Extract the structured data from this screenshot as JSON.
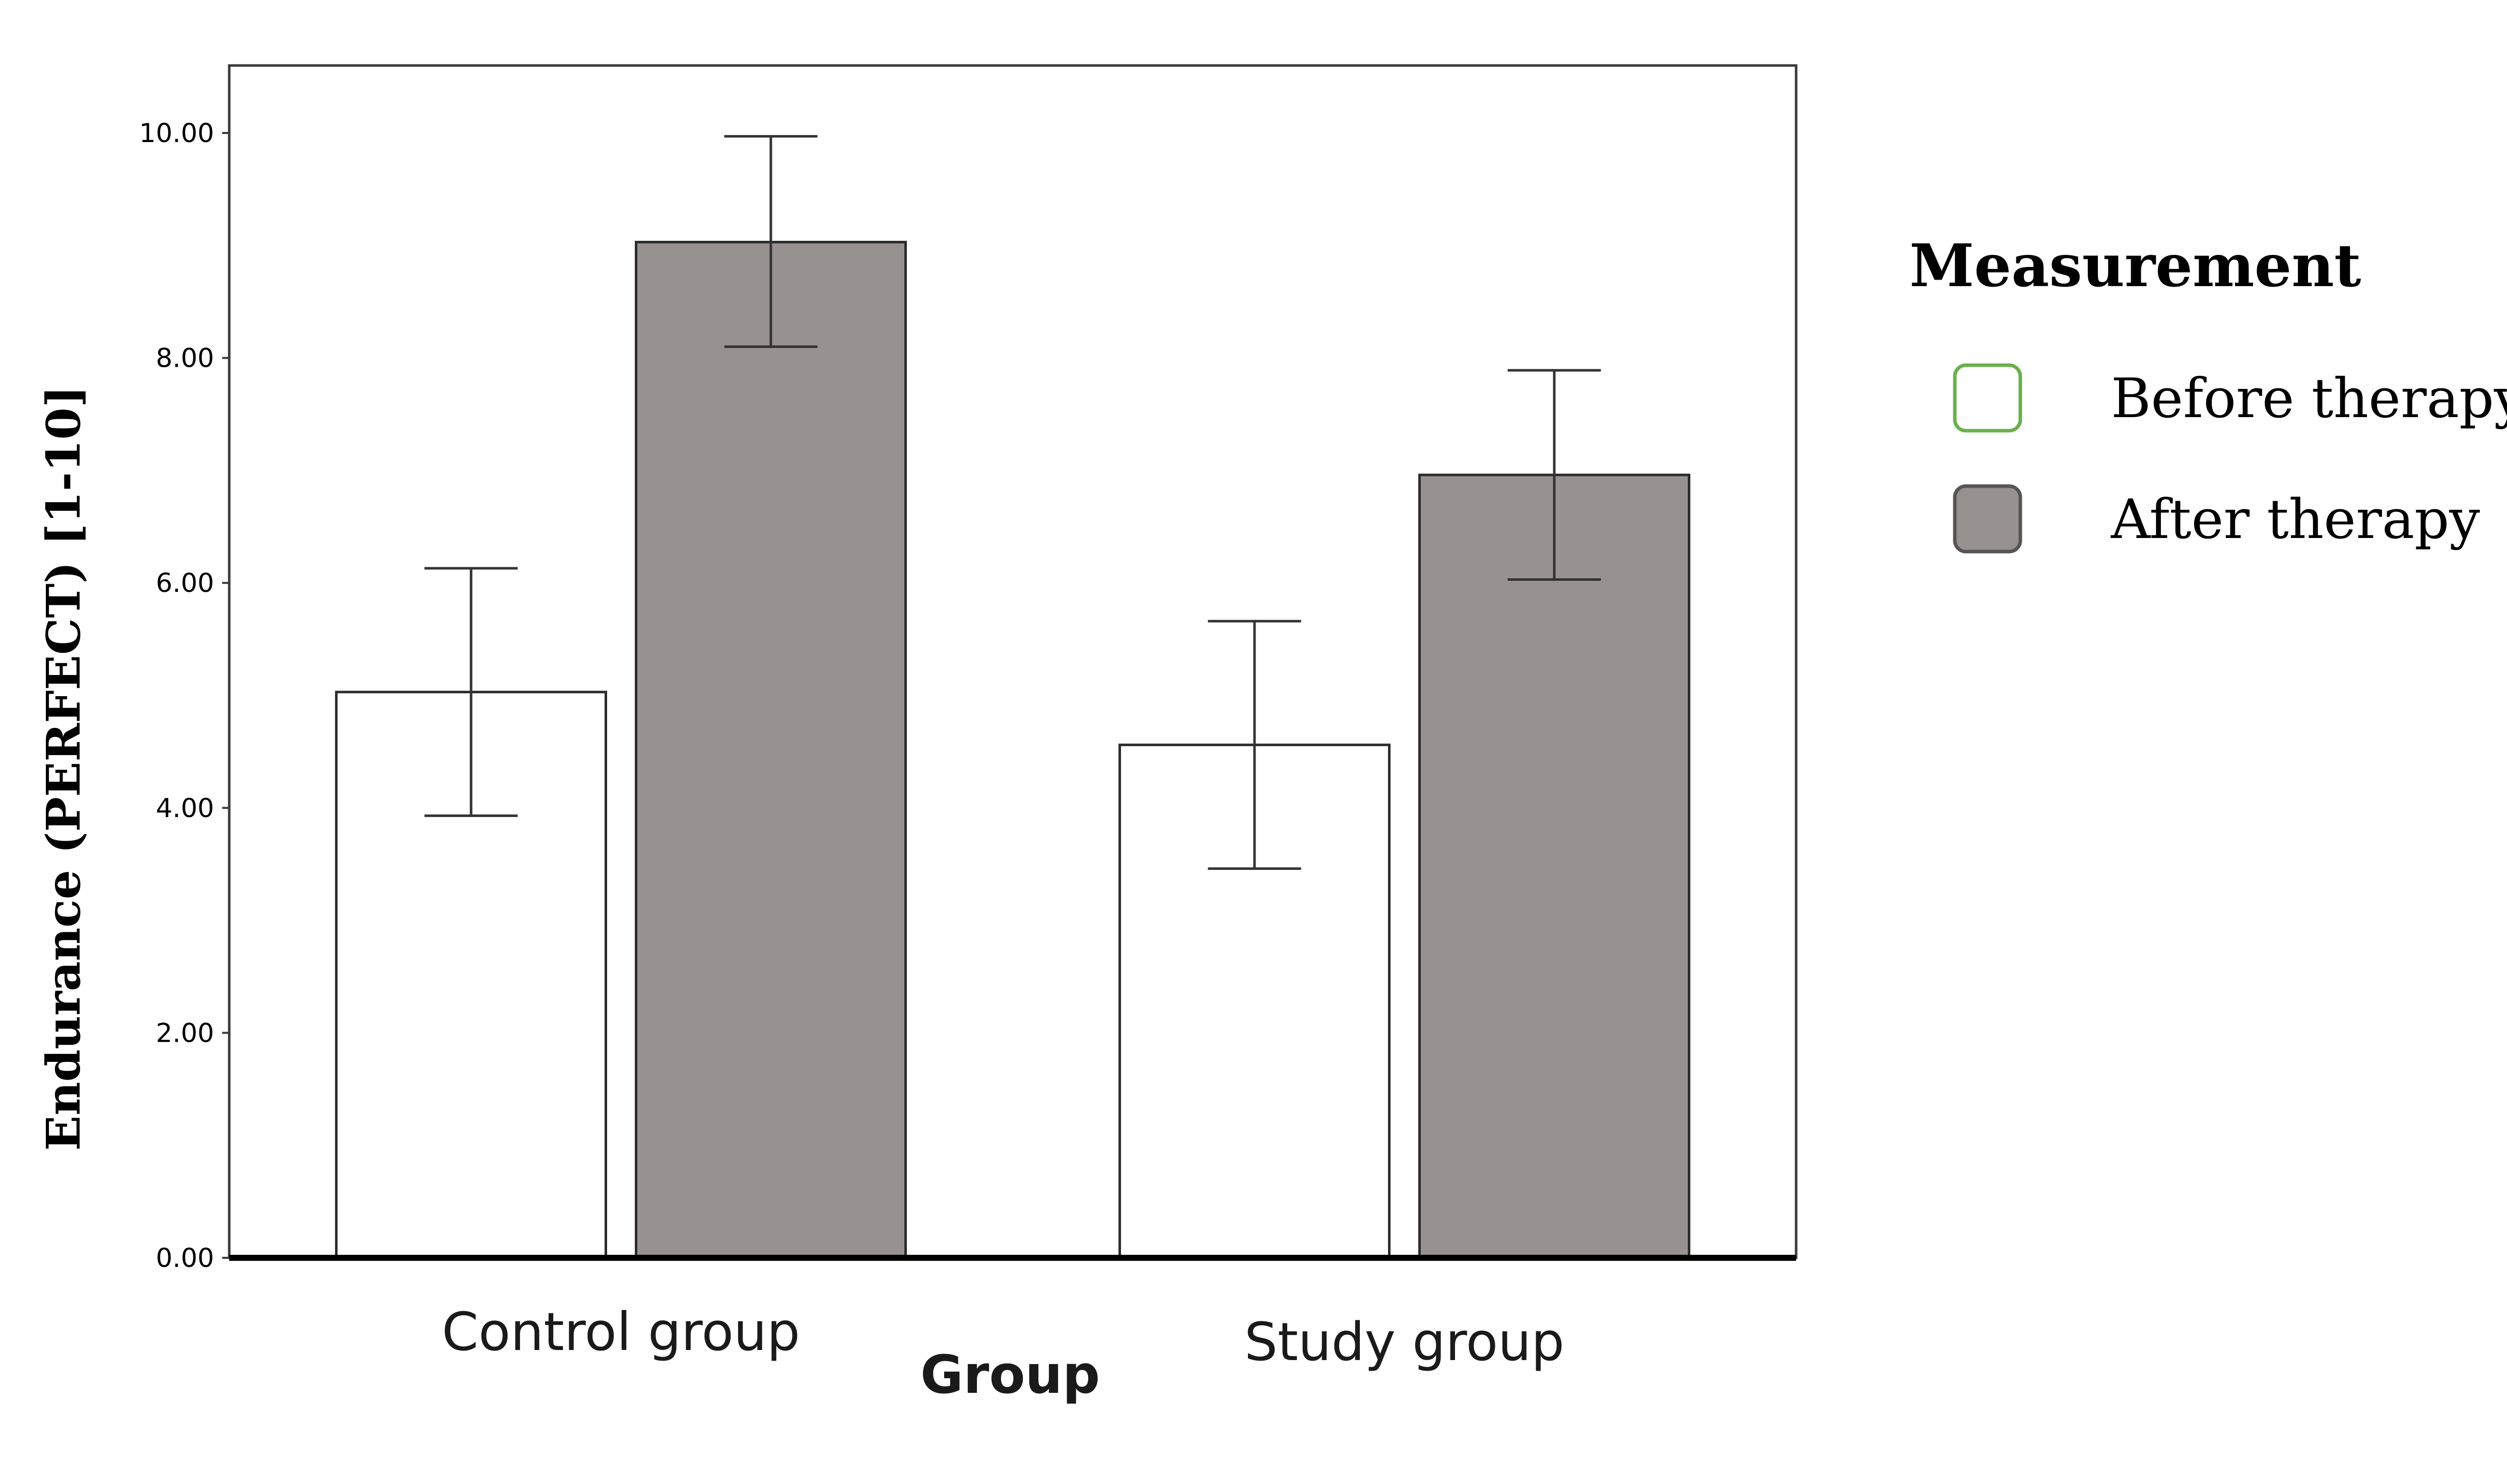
{
  "chart_data": {
    "type": "bar",
    "xlabel": "Group",
    "ylabel": "Endurance (PERFECT) [1-10]",
    "ylim": [
      0,
      10.6
    ],
    "yticks": [
      0,
      2,
      4,
      6,
      8,
      10
    ],
    "ytick_labels": [
      "0.00",
      "2.00",
      "4.00",
      "6.00",
      "8.00",
      "10.00"
    ],
    "categories": [
      "Control group",
      "Study group"
    ],
    "legend_title": "Measurement",
    "legend_position": "right",
    "series": [
      {
        "name": "Before therapy",
        "fill": "#ffffff",
        "stroke": "#2b2b2b",
        "legend_stroke": "#6ab04c",
        "values": [
          5.03,
          4.56
        ],
        "error_low": [
          3.93,
          3.46
        ],
        "error_high": [
          6.13,
          5.66
        ]
      },
      {
        "name": "After therapy",
        "fill": "#979190",
        "stroke": "#2b2b2b",
        "legend_stroke": "#555555",
        "values": [
          9.03,
          6.96
        ],
        "error_low": [
          8.1,
          6.03
        ],
        "error_high": [
          9.97,
          7.89
        ]
      }
    ]
  }
}
